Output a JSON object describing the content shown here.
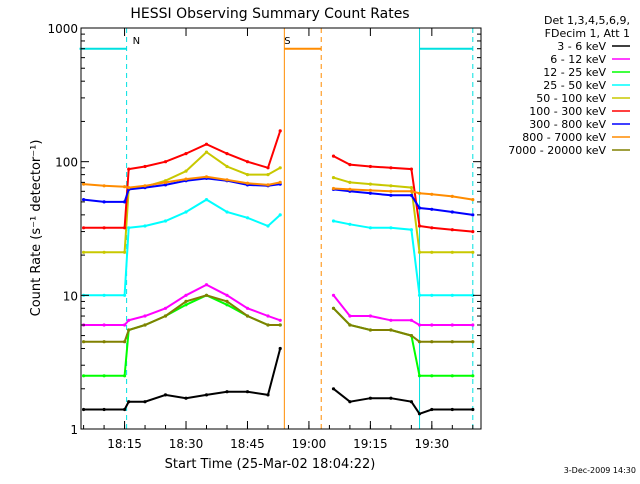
{
  "chart_data": {
    "type": "line",
    "title": "HESSI Observing Summary Count Rates",
    "xlabel": "Start Time (25-Mar-02 18:04:22)",
    "ylabel": "Count Rate (s⁻¹ detector⁻¹)",
    "yscale": "log",
    "ylim": [
      1,
      1000
    ],
    "xlim": [
      "18:04:22",
      "19:42:00"
    ],
    "x_ticks": [
      "18:15",
      "18:30",
      "18:45",
      "19:00",
      "19:15",
      "19:30"
    ],
    "y_ticks": [
      "1",
      "10",
      "100",
      "1000"
    ],
    "legend_header": [
      "Det 1,3,4,5,6,9,",
      "FDecim 1, Att 1"
    ],
    "legend_position": "right",
    "footer": "3-Dec-2009 14:30",
    "grid": false,
    "annotations": [
      {
        "label": "N",
        "x": "18:16",
        "color": "#00e0e0"
      },
      {
        "label": "S",
        "x": "18:53",
        "color": "#ff8c00"
      }
    ],
    "markers": {
      "night_start": "18:04",
      "night_end": "18:15:30",
      "night2_start": "19:27",
      "night2_end": "19:40",
      "saa_start": "18:54",
      "saa_end": "19:03",
      "saa_level": 700,
      "night_level": 700,
      "saa_line_color": "#ff8c00",
      "night_line_color": "#00e0e0"
    },
    "x": [
      "18:05",
      "18:10",
      "18:15",
      "18:16",
      "18:20",
      "18:25",
      "18:30",
      "18:35",
      "18:40",
      "18:45",
      "18:50",
      "18:53",
      "19:06",
      "19:10",
      "19:15",
      "19:20",
      "19:25",
      "19:27",
      "19:30",
      "19:35",
      "19:40"
    ],
    "series": [
      {
        "name": "3 - 6 keV",
        "color": "#000000",
        "values": [
          1.4,
          1.4,
          1.4,
          1.6,
          1.6,
          1.8,
          1.7,
          1.8,
          1.9,
          1.9,
          1.8,
          4.0,
          2.0,
          1.6,
          1.7,
          1.7,
          1.6,
          1.3,
          1.4,
          1.4,
          1.4
        ]
      },
      {
        "name": "6 - 12 keV",
        "color": "#ff00ff",
        "values": [
          6.0,
          6.0,
          6.0,
          6.5,
          7,
          8,
          10,
          12,
          10,
          8,
          7,
          6.5,
          10,
          7,
          7,
          6.5,
          6.5,
          6.0,
          6.0,
          6.0,
          6.0
        ]
      },
      {
        "name": "12 - 25 keV",
        "color": "#00ff00",
        "values": [
          2.5,
          2.5,
          2.5,
          5.5,
          6,
          7,
          8.5,
          10,
          8.5,
          7,
          6,
          6,
          8,
          6,
          5.5,
          5.5,
          5,
          2.5,
          2.5,
          2.5,
          2.5
        ]
      },
      {
        "name": "25 - 50 keV",
        "color": "#00ffff",
        "values": [
          10,
          10,
          10,
          32,
          33,
          36,
          42,
          52,
          42,
          38,
          33,
          40,
          36,
          34,
          32,
          32,
          31,
          10,
          10,
          10,
          10
        ]
      },
      {
        "name": "50 - 100 keV",
        "color": "#c8c800",
        "values": [
          21,
          21,
          21,
          62,
          65,
          72,
          85,
          118,
          92,
          80,
          80,
          90,
          76,
          70,
          68,
          66,
          64,
          21,
          21,
          21,
          21
        ]
      },
      {
        "name": "100 - 300 keV",
        "color": "#ff0000",
        "values": [
          32,
          32,
          32,
          88,
          92,
          100,
          115,
          135,
          115,
          100,
          90,
          170,
          110,
          95,
          92,
          90,
          88,
          33,
          32,
          31,
          30
        ]
      },
      {
        "name": "300 - 800 keV",
        "color": "#0000ff",
        "values": [
          52,
          50,
          50,
          62,
          64,
          67,
          72,
          75,
          72,
          67,
          66,
          68,
          62,
          60,
          58,
          56,
          56,
          45,
          44,
          42,
          40
        ]
      },
      {
        "name": "800 - 7000 keV",
        "color": "#ff8c00",
        "values": [
          68,
          66,
          65,
          64,
          66,
          70,
          74,
          77,
          73,
          69,
          67,
          70,
          63,
          62,
          61,
          60,
          60,
          58,
          57,
          55,
          52
        ]
      },
      {
        "name": "7000 - 20000 keV",
        "color": "#808000",
        "values": [
          4.5,
          4.5,
          4.5,
          5.5,
          6,
          7,
          9,
          10,
          9,
          7,
          6,
          6,
          8,
          6,
          5.5,
          5.5,
          5,
          4.5,
          4.5,
          4.5,
          4.5
        ]
      }
    ]
  }
}
